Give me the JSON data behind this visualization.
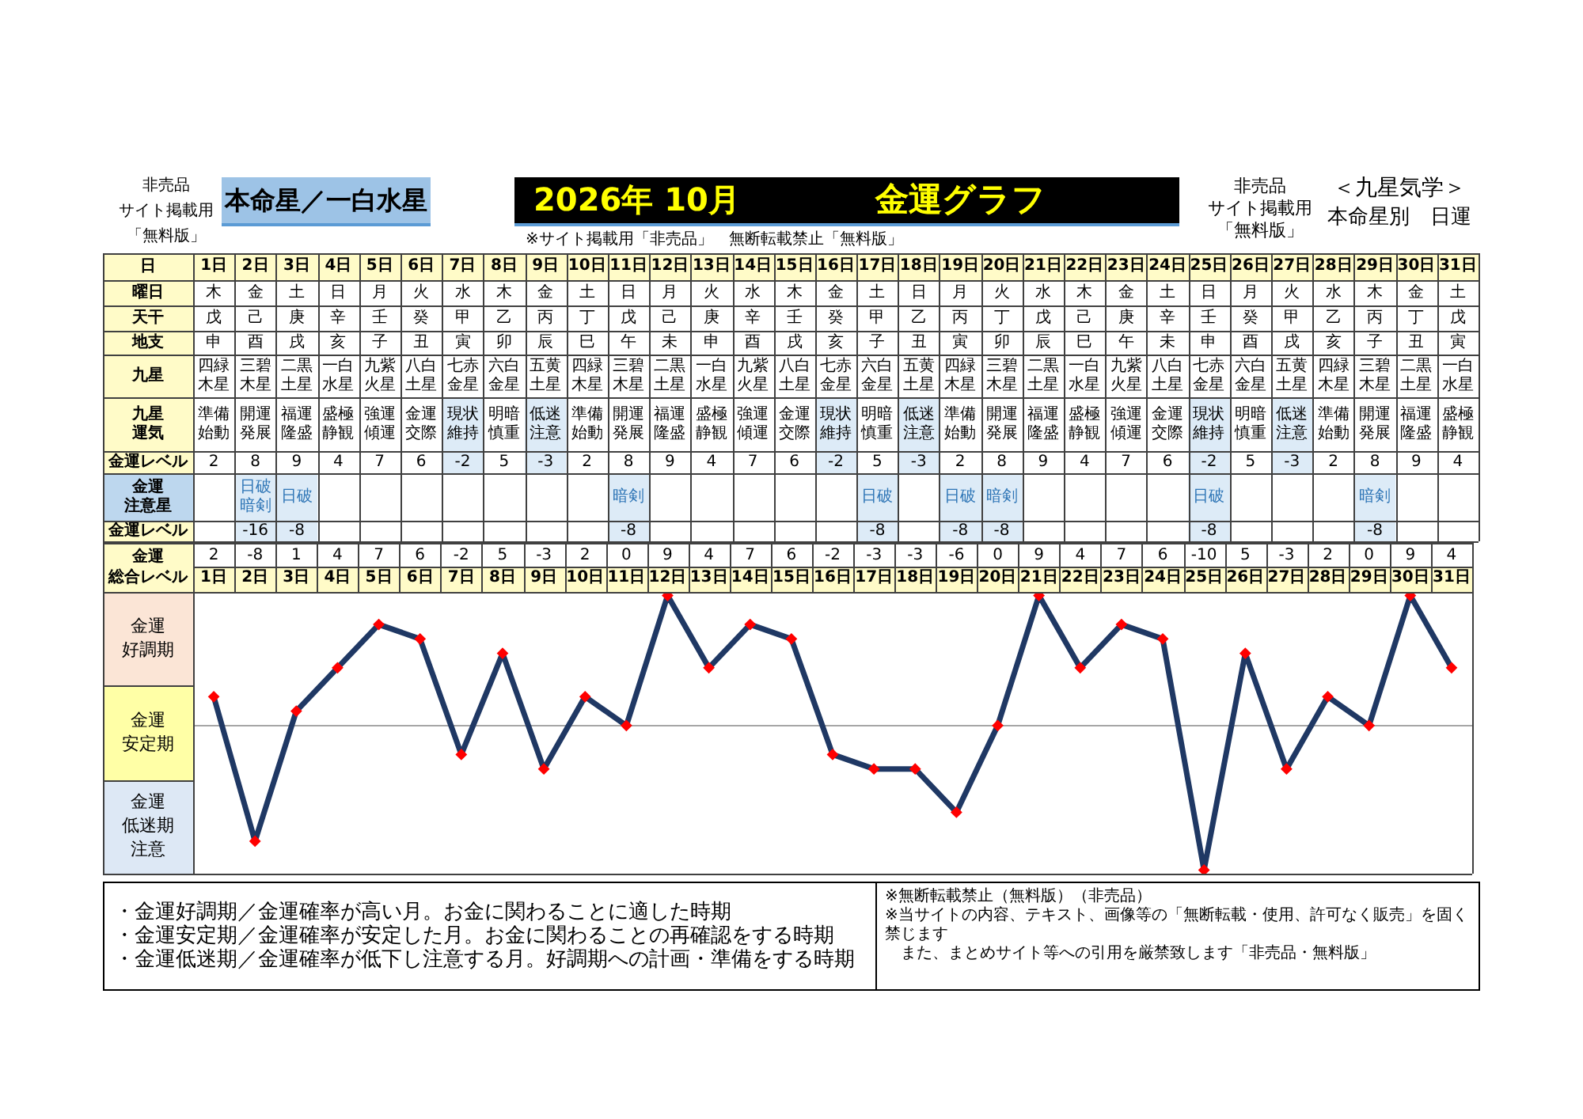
{
  "chart_data": [
    {
      "type": "heatmap",
      "title": "金運グラフ",
      "subtitle": "2026年 10月",
      "xlabel": "日",
      "data_labels": true,
      "annotations": [
        "非売品",
        "サイト掲載用",
        "「無料版」",
        "本命星／一白水星",
        "※サイト掲載用「非売品」　無断転載禁止「無料版」",
        "非売品",
        "サイト掲載用",
        "「無料版」",
        "＜九星気学＞",
        "本命星別　日運"
      ],
      "categories": [
        "1日",
        "2日",
        "3日",
        "4日",
        "5日",
        "6日",
        "7日",
        "8日",
        "9日",
        "10日",
        "11日",
        "12日",
        "13日",
        "14日",
        "15日",
        "16日",
        "17日",
        "18日",
        "19日",
        "20日",
        "21日",
        "22日",
        "23日",
        "24日",
        "25日",
        "26日",
        "27日",
        "28日",
        "29日",
        "30日",
        "31日"
      ],
      "y_categories": [
        "曜日",
        "天干",
        "地支",
        "九星",
        "九星運気",
        "金運レベル",
        "金運注意星",
        "金運レベル"
      ],
      "cells": [
        [
          null,
          null,
          null,
          null,
          null,
          null,
          null,
          null,
          null,
          null,
          null,
          null,
          null,
          null,
          null,
          null,
          null,
          null,
          null,
          null,
          null,
          null,
          null,
          null,
          null,
          null,
          null,
          null,
          null,
          null,
          null
        ],
        [
          null,
          null,
          null,
          null,
          null,
          null,
          null,
          null,
          null,
          null,
          null,
          null,
          null,
          null,
          null,
          null,
          null,
          null,
          null,
          null,
          null,
          null,
          null,
          null,
          null,
          null,
          null,
          null,
          null,
          null,
          null
        ],
        [
          null,
          null,
          null,
          null,
          null,
          null,
          null,
          null,
          null,
          null,
          null,
          null,
          null,
          null,
          null,
          null,
          null,
          null,
          null,
          null,
          null,
          null,
          null,
          null,
          null,
          null,
          null,
          null,
          null,
          null,
          null
        ],
        [
          null,
          null,
          null,
          null,
          null,
          null,
          null,
          null,
          null,
          null,
          null,
          null,
          null,
          null,
          null,
          null,
          null,
          null,
          null,
          null,
          null,
          null,
          null,
          null,
          null,
          null,
          null,
          null,
          null,
          null,
          null
        ],
        [
          null,
          null,
          null,
          null,
          null,
          null,
          null,
          null,
          null,
          null,
          null,
          null,
          null,
          null,
          null,
          null,
          null,
          null,
          null,
          null,
          null,
          null,
          null,
          null,
          null,
          null,
          null,
          null,
          null,
          null,
          null
        ],
        [
          2,
          8,
          9,
          4,
          7,
          6,
          -2,
          5,
          -3,
          2,
          8,
          9,
          4,
          7,
          6,
          -2,
          5,
          -3,
          2,
          8,
          9,
          4,
          7,
          6,
          -2,
          5,
          -3,
          2,
          8,
          9,
          4
        ],
        [
          null,
          null,
          null,
          null,
          null,
          null,
          null,
          null,
          null,
          null,
          null,
          null,
          null,
          null,
          null,
          null,
          null,
          null,
          null,
          null,
          null,
          null,
          null,
          null,
          null,
          null,
          null,
          null,
          null,
          null,
          null
        ],
        [
          null,
          -16,
          -8,
          null,
          null,
          null,
          null,
          null,
          null,
          null,
          -8,
          null,
          null,
          null,
          null,
          null,
          -8,
          null,
          -8,
          -8,
          null,
          null,
          null,
          null,
          -8,
          null,
          null,
          null,
          -8,
          null,
          null
        ]
      ],
      "cell_labels": [
        [
          "木",
          "金",
          "土",
          "日",
          "月",
          "火",
          "水",
          "木",
          "金",
          "土",
          "日",
          "月",
          "火",
          "水",
          "木",
          "金",
          "土",
          "日",
          "月",
          "火",
          "水",
          "木",
          "金",
          "土",
          "日",
          "月",
          "火",
          "水",
          "木",
          "金",
          "土"
        ],
        [
          "戊",
          "己",
          "庚",
          "辛",
          "壬",
          "癸",
          "甲",
          "乙",
          "丙",
          "丁",
          "戊",
          "己",
          "庚",
          "辛",
          "壬",
          "癸",
          "甲",
          "乙",
          "丙",
          "丁",
          "戊",
          "己",
          "庚",
          "辛",
          "壬",
          "癸",
          "甲",
          "乙",
          "丙",
          "丁",
          "戊"
        ],
        [
          "申",
          "酉",
          "戌",
          "亥",
          "子",
          "丑",
          "寅",
          "卯",
          "辰",
          "巳",
          "午",
          "未",
          "申",
          "酉",
          "戌",
          "亥",
          "子",
          "丑",
          "寅",
          "卯",
          "辰",
          "巳",
          "午",
          "未",
          "申",
          "酉",
          "戌",
          "亥",
          "子",
          "丑",
          "寅"
        ],
        [
          "四緑木星",
          "三碧木星",
          "二黒土星",
          "一白水星",
          "九紫火星",
          "八白土星",
          "七赤金星",
          "六白金星",
          "五黄土星",
          "四緑木星",
          "三碧木星",
          "二黒土星",
          "一白水星",
          "九紫火星",
          "八白土星",
          "七赤金星",
          "六白金星",
          "五黄土星",
          "四緑木星",
          "三碧木星",
          "二黒土星",
          "一白水星",
          "九紫火星",
          "八白土星",
          "七赤金星",
          "六白金星",
          "五黄土星",
          "四緑木星",
          "三碧木星",
          "二黒土星",
          "一白水星"
        ],
        [
          "準備始動",
          "開運発展",
          "福運隆盛",
          "盛極静観",
          "強運傾運",
          "金運交際",
          "現状維持",
          "明暗慎重",
          "低迷注意",
          "準備始動",
          "開運発展",
          "福運隆盛",
          "盛極静観",
          "強運傾運",
          "金運交際",
          "現状維持",
          "明暗慎重",
          "低迷注意",
          "準備始動",
          "開運発展",
          "福運隆盛",
          "盛極静観",
          "強運傾運",
          "金運交際",
          "現状維持",
          "明暗慎重",
          "低迷注意",
          "準備始動",
          "開運発展",
          "福運隆盛",
          "盛極静観"
        ],
        [
          "2",
          "8",
          "9",
          "4",
          "7",
          "6",
          "-2",
          "5",
          "-3",
          "2",
          "8",
          "9",
          "4",
          "7",
          "6",
          "-2",
          "5",
          "-3",
          "2",
          "8",
          "9",
          "4",
          "7",
          "6",
          "-2",
          "5",
          "-3",
          "2",
          "8",
          "9",
          "4"
        ],
        [
          null,
          "日破暗剣",
          "日破",
          null,
          null,
          null,
          null,
          null,
          null,
          null,
          "暗剣",
          null,
          null,
          null,
          null,
          null,
          "日破",
          null,
          "日破",
          "暗剣",
          null,
          null,
          null,
          null,
          "日破",
          null,
          null,
          null,
          "暗剣",
          null,
          null
        ],
        [
          null,
          "-16",
          "-8",
          null,
          null,
          null,
          null,
          null,
          null,
          null,
          "-8",
          null,
          null,
          null,
          null,
          null,
          "-8",
          null,
          "-8",
          "-8",
          null,
          null,
          null,
          null,
          "-8",
          null,
          null,
          null,
          "-8",
          null,
          null
        ]
      ]
    },
    {
      "type": "line",
      "ylabel": "金運総合レベル",
      "categories": [
        "1日",
        "2日",
        "3日",
        "4日",
        "5日",
        "6日",
        "7日",
        "8日",
        "9日",
        "10日",
        "11日",
        "12日",
        "13日",
        "14日",
        "15日",
        "16日",
        "17日",
        "18日",
        "19日",
        "20日",
        "21日",
        "22日",
        "23日",
        "24日",
        "25日",
        "26日",
        "27日",
        "28日",
        "29日",
        "30日",
        "31日"
      ],
      "values": [
        2,
        -8,
        1,
        4,
        7,
        6,
        -2,
        5,
        -3,
        2,
        0,
        9,
        4,
        7,
        6,
        -2,
        -3,
        -3,
        -6,
        0,
        9,
        4,
        7,
        6,
        -10,
        5,
        -3,
        2,
        0,
        9,
        4
      ],
      "color": "#1f3864",
      "colors": [
        "#ff0000",
        "#ff0000",
        "#ff0000",
        "#ff0000",
        "#ff0000",
        "#ff0000",
        "#ff0000",
        "#ff0000",
        "#ff0000",
        "#ff0000",
        "#ff0000",
        "#ff0000",
        "#ff0000",
        "#ff0000",
        "#ff0000",
        "#ff0000",
        "#ff0000",
        "#ff0000",
        "#ff0000",
        "#ff0000",
        "#ff0000",
        "#ff0000",
        "#ff0000",
        "#ff0000",
        "#ff0000",
        "#ff0000",
        "#ff0000",
        "#ff0000",
        "#ff0000",
        "#ff0000",
        "#ff0000"
      ],
      "marker": "diamond",
      "data_labels": true,
      "tick_labels": "x",
      "ylim": [
        -10.25,
        9.25
      ],
      "ref_lines": [
        {
          "axis": "y",
          "value": 0,
          "color": "#a6a6a6"
        }
      ],
      "annotations": [
        "金運好調期",
        "金運安定期",
        "金運低迷期注意",
        "・金運好調期／金運確率が高い月。お金に関わることに適した時期",
        "・金運安定期／金運確率が安定した月。お金に関わることの再確認をする時期",
        "・金運低迷期／金運確率が低下し注意する月。好調期への計画・準備をする時期",
        "※無断転載禁止（無料版）（非売品）",
        "※当サイトの内容、テキスト、画像等の「無断転載・使用、許可なく販売」を固く禁じます",
        "また、まとめサイト等への引用を厳禁致します「非売品・無料版」"
      ]
    }
  ]
}
